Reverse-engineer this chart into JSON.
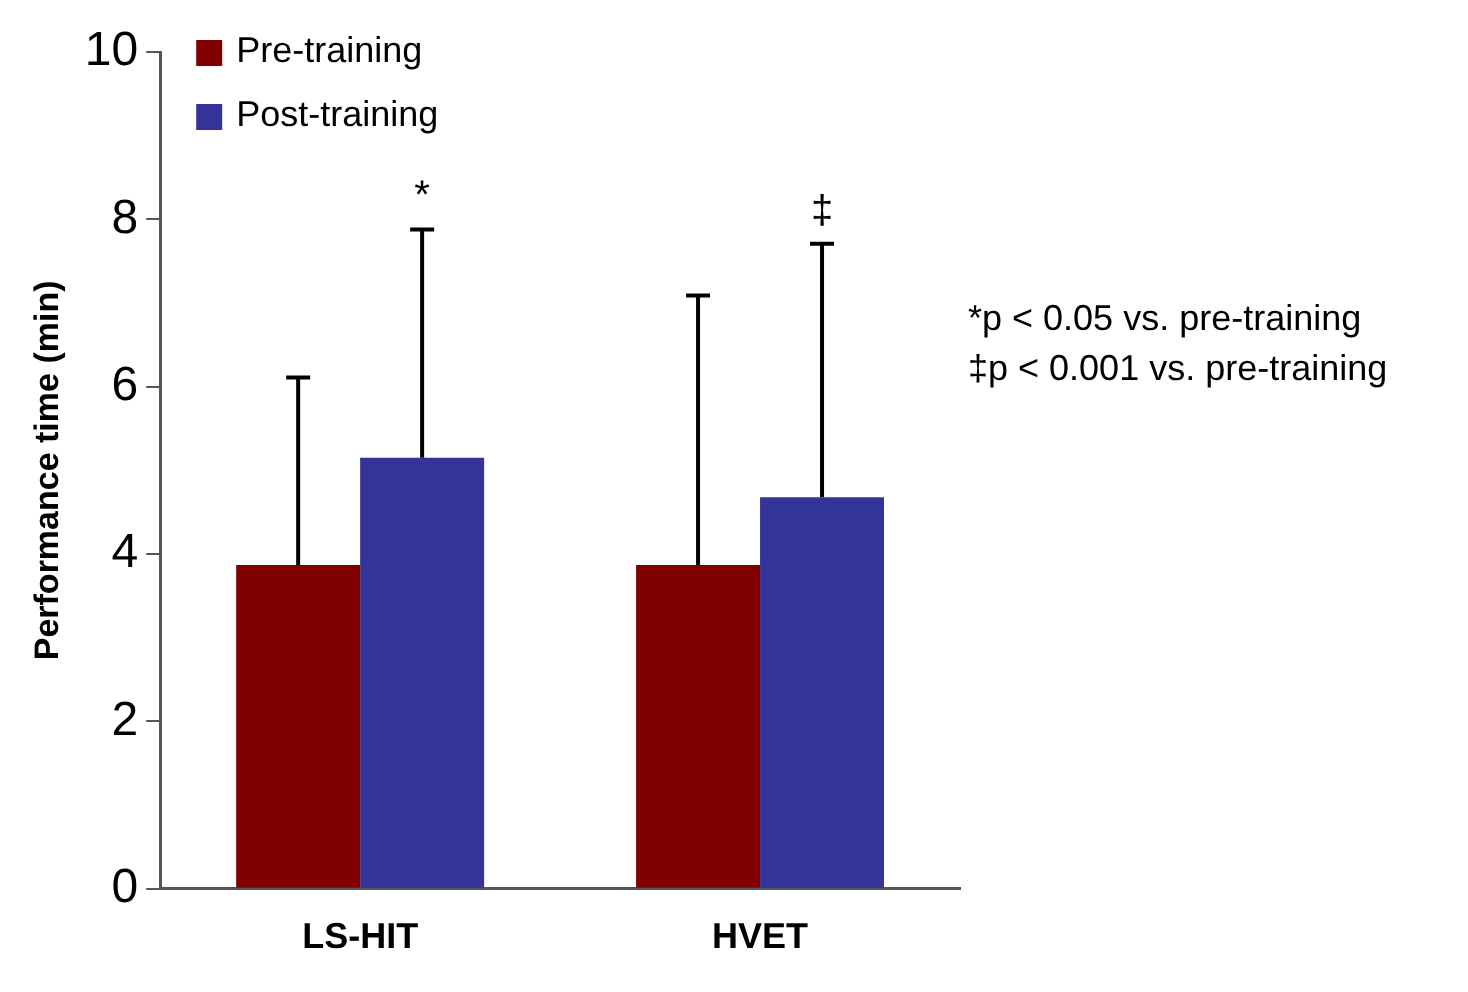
{
  "chart_data": {
    "type": "bar",
    "ylabel": "Performance time (min)",
    "categories": [
      "LS-HIT",
      "HVET"
    ],
    "series": [
      {
        "name": "Pre-training",
        "color": "#800000",
        "values": [
          3.87,
          3.87
        ],
        "errors": [
          [
            3.87,
            6.11
          ],
          [
            3.87,
            7.09
          ]
        ]
      },
      {
        "name": "Post-training",
        "color": "#333399",
        "values": [
          5.15,
          4.68
        ],
        "errors": [
          [
            5.15,
            7.88
          ],
          [
            4.68,
            7.71
          ]
        ]
      }
    ],
    "ylim": [
      0,
      10
    ],
    "yticks": [
      0,
      2,
      4,
      6,
      8,
      10
    ],
    "grid": false,
    "legend": "top left",
    "annotations": [
      "*",
      "‡",
      "*p < 0.05 vs. pre-training",
      "‡p < 0.001 vs. pre-training"
    ]
  }
}
